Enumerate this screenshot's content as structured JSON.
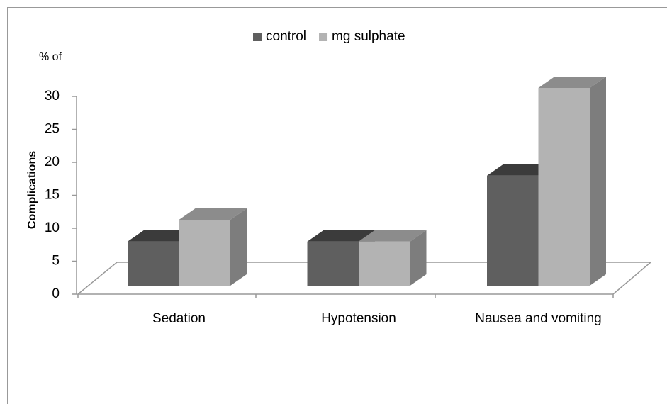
{
  "chart_data": {
    "type": "bar3d",
    "annotation": "% of",
    "ylabel": "Complications",
    "categories": [
      "Sedation",
      "Hypotension",
      "Nausea and vomiting"
    ],
    "series": [
      {
        "name": "control",
        "color": "#5f5f5f",
        "values": [
          6.7,
          6.7,
          16.7
        ]
      },
      {
        "name": "mg sulphate",
        "color": "#b3b3b3",
        "values": [
          10,
          6.7,
          30
        ]
      }
    ],
    "ylim": [
      0,
      30
    ],
    "yticks": [
      0,
      5,
      10,
      15,
      20,
      25,
      30
    ],
    "legend": "top"
  }
}
